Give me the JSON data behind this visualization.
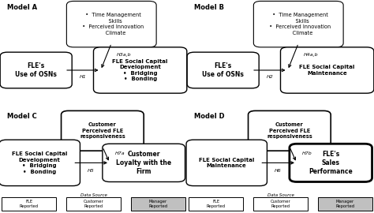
{
  "modelA": {
    "title": "Model A",
    "mod_text": "  •  Time Management\n     Skills\n  •  Perceived Innovation\n     Climate",
    "left_text": "FLE's\nUse of OSNs",
    "right_text": "FLE Social Capital\nDevelopment\n•  Bridging\n•  Bonding",
    "h_main": "H1",
    "h_mod": "H3a,b",
    "right_bold": true,
    "mod_style": "round",
    "right_style": "round"
  },
  "modelB": {
    "title": "Model B",
    "mod_text": "  •  Time Management\n     Skills\n  •  Perceived Innovation\n     Climate",
    "left_text": "FLE's\nUse of OSNs",
    "right_text": "FLE Social Capital\nMaintenance",
    "h_main": "H2",
    "h_mod": "H4a,b",
    "right_bold": true,
    "mod_style": "round",
    "right_style": "round"
  },
  "modelC": {
    "title": "Model C",
    "mod_text": "Customer\nPerceived FLE\nresponsiveness",
    "left_text": "FLE Social Capital\nDevelopment\n•  Bridging\n•  Bonding",
    "right_text": "Customer\nLoyalty with the\nFirm",
    "h_main": "H5",
    "h_mod": "H7a",
    "right_bold": true,
    "mod_style": "beveled",
    "right_style": "beveled",
    "ds1": "FLE\nReported",
    "ds2": "Customer\nReported",
    "ds3": "Manager\nReported",
    "ds3_gray": true
  },
  "modelD": {
    "title": "Model D",
    "mod_text": "Customer\nPerceived FLE\nresponsiveness",
    "left_text": "FLE Social Capital\nMaintenance",
    "right_text": "FLE's\nSales\nPerformance",
    "h_main": "H6",
    "h_mod": "H7b",
    "right_bold": true,
    "mod_style": "beveled",
    "right_style": "beveled_thick",
    "ds1": "FLE\nReported",
    "ds2": "Customer\nReported",
    "ds3": "Manager\nReported",
    "ds3_gray": true
  }
}
